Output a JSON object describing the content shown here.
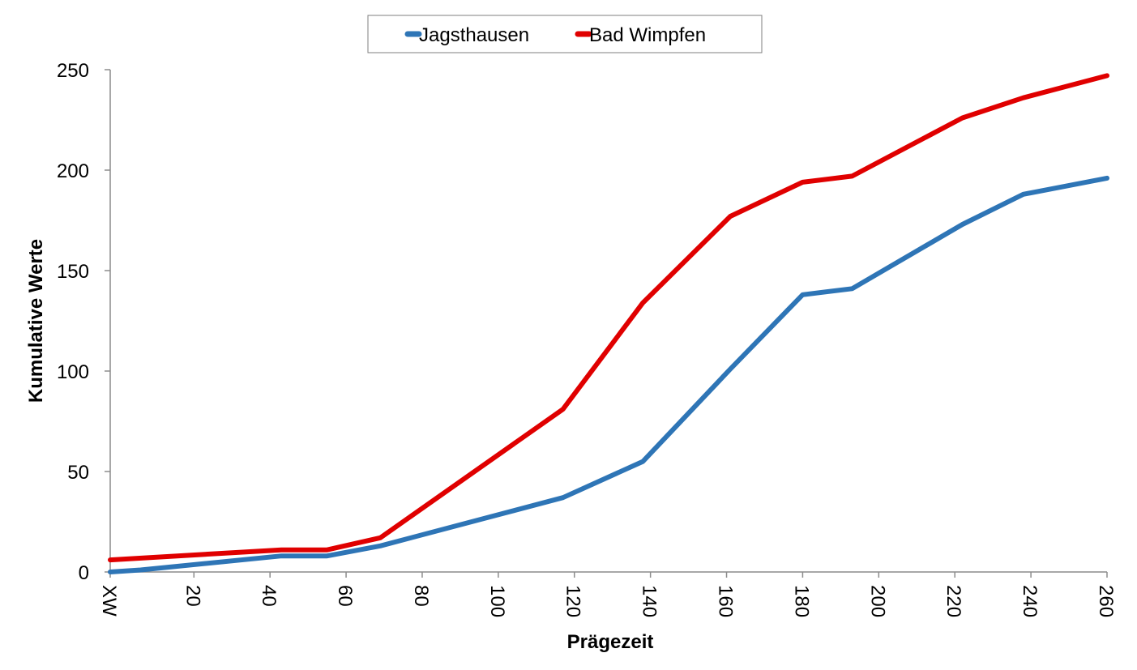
{
  "chart_data": {
    "type": "line",
    "title": "",
    "xlabel": "Prägezeit",
    "ylabel": "Kumulative Werte",
    "xlim": [
      -2,
      260
    ],
    "ylim": [
      0,
      250
    ],
    "x_ticks": [
      {
        "value": -2,
        "label": "XW"
      },
      {
        "value": 20,
        "label": "20"
      },
      {
        "value": 40,
        "label": "40"
      },
      {
        "value": 60,
        "label": "60"
      },
      {
        "value": 80,
        "label": "80"
      },
      {
        "value": 100,
        "label": "100"
      },
      {
        "value": 120,
        "label": "120"
      },
      {
        "value": 140,
        "label": "140"
      },
      {
        "value": 160,
        "label": "160"
      },
      {
        "value": 180,
        "label": "180"
      },
      {
        "value": 200,
        "label": "200"
      },
      {
        "value": 220,
        "label": "220"
      },
      {
        "value": 240,
        "label": "240"
      },
      {
        "value": 260,
        "label": "260"
      }
    ],
    "y_ticks": [
      {
        "value": 0,
        "label": "0"
      },
      {
        "value": 50,
        "label": "50"
      },
      {
        "value": 100,
        "label": "100"
      },
      {
        "value": 150,
        "label": "150"
      },
      {
        "value": 200,
        "label": "200"
      },
      {
        "value": 250,
        "label": "250"
      }
    ],
    "grid": false,
    "legend_position": "top-center",
    "series": [
      {
        "name": "Jagsthausen",
        "color": "#2E75B6",
        "points": [
          {
            "x": -2,
            "y": 0
          },
          {
            "x": 6,
            "y": 1
          },
          {
            "x": 43,
            "y": 8
          },
          {
            "x": 55,
            "y": 8
          },
          {
            "x": 69,
            "y": 13
          },
          {
            "x": 117,
            "y": 37
          },
          {
            "x": 138,
            "y": 55
          },
          {
            "x": 161,
            "y": 101
          },
          {
            "x": 180,
            "y": 138
          },
          {
            "x": 193,
            "y": 141
          },
          {
            "x": 222,
            "y": 173
          },
          {
            "x": 238,
            "y": 188
          },
          {
            "x": 260,
            "y": 196
          }
        ]
      },
      {
        "name": "Bad Wimpfen",
        "color": "#E00000",
        "points": [
          {
            "x": -2,
            "y": 6
          },
          {
            "x": 43,
            "y": 11
          },
          {
            "x": 55,
            "y": 11
          },
          {
            "x": 69,
            "y": 17
          },
          {
            "x": 117,
            "y": 81
          },
          {
            "x": 138,
            "y": 134
          },
          {
            "x": 161,
            "y": 177
          },
          {
            "x": 180,
            "y": 194
          },
          {
            "x": 193,
            "y": 197
          },
          {
            "x": 222,
            "y": 226
          },
          {
            "x": 238,
            "y": 236
          },
          {
            "x": 260,
            "y": 247
          }
        ]
      }
    ]
  }
}
